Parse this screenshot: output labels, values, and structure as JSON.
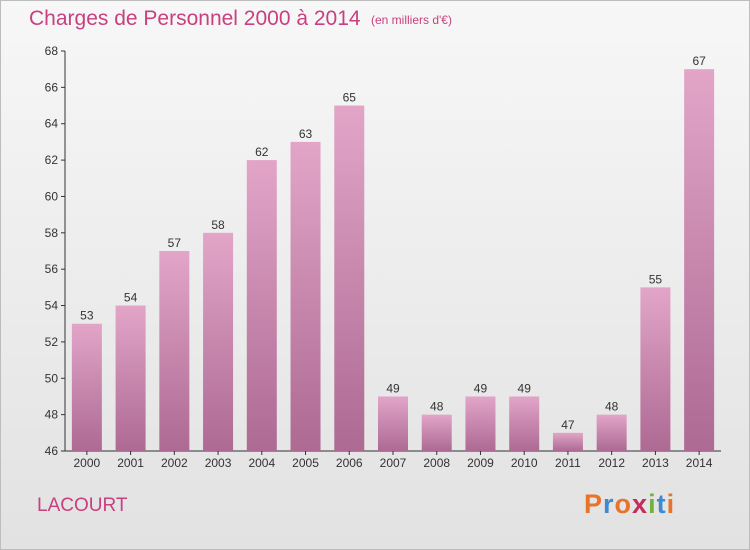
{
  "header": {
    "title": "Charges de Personnel 2000 à 2014",
    "unit": "(en milliers d'€)"
  },
  "footer": {
    "commune": "LACOURT",
    "logo": "Proxiti"
  },
  "colors": {
    "title": "#c8407f",
    "bar_top": "#e2a5c8",
    "bar_bottom": "#ad6a93",
    "axis": "#333333",
    "logo_letters": [
      "#e8732a",
      "#3d8ad0",
      "#e8732a",
      "#c22d5a",
      "#6fb33c",
      "#3d8ad0",
      "#e8732a"
    ]
  },
  "chart_data": {
    "type": "bar",
    "categories": [
      "2000",
      "2001",
      "2002",
      "2003",
      "2004",
      "2005",
      "2006",
      "2007",
      "2008",
      "2009",
      "2010",
      "2011",
      "2012",
      "2013",
      "2014"
    ],
    "values": [
      53,
      54,
      57,
      58,
      62,
      63,
      65,
      49,
      48,
      49,
      49,
      47,
      48,
      55,
      67
    ],
    "data_labels": [
      "53",
      "54",
      "57",
      "58",
      "62",
      "63",
      "65",
      "49",
      "48",
      "49",
      "49",
      "47",
      "48",
      "55",
      "67"
    ],
    "yticks": [
      46,
      48,
      50,
      52,
      54,
      56,
      58,
      60,
      62,
      64,
      66,
      68
    ],
    "ytick_labels": [
      "46",
      "48",
      "50",
      "52",
      "54",
      "56",
      "58",
      "60",
      "62",
      "64",
      "66",
      "68"
    ],
    "ylim": [
      46,
      68
    ],
    "grid": false,
    "title": "Charges de Personnel 2000 à 2014",
    "xlabel": "",
    "ylabel": ""
  }
}
